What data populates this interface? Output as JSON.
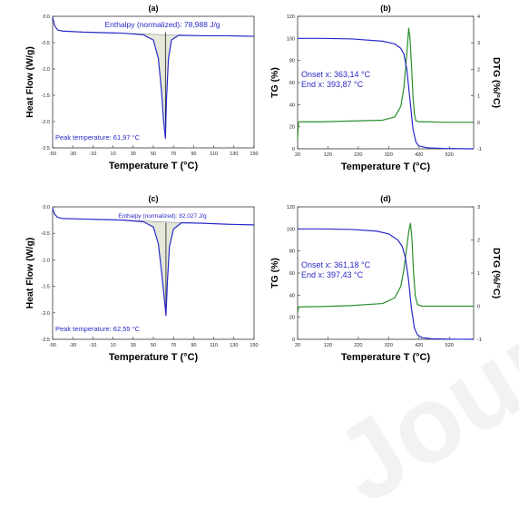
{
  "watermark": "Journal Pre-proofs",
  "colors": {
    "dsc": "#2929c8",
    "tg": "#2929c8",
    "dtg": "#2b8f2b",
    "peakTip": "#000000",
    "fill": "#e5e8d8"
  },
  "chart_data": [
    {
      "panel": "(a)",
      "type": "line",
      "kind": "dsc",
      "title": "(a)",
      "xlabel": "Temperature T (°C)",
      "ylabel": "Heat Flow (W/g)",
      "xlim": [
        -50,
        150
      ],
      "ylim": [
        -2.5,
        0.0
      ],
      "xticks": [
        -50,
        -30,
        -10,
        10,
        30,
        50,
        70,
        90,
        110,
        130,
        150
      ],
      "yticks": [
        -2.5,
        -2.0,
        -1.5,
        -1.0,
        -0.5,
        0.0
      ],
      "ytick_labels": [
        "-2.5",
        "-2.0",
        "-1.5",
        "-1.0",
        "-0.5",
        "0.0"
      ],
      "annotation_top": "Enthalpy (normalized): 78,988 J/g",
      "annotation_bottom": "Peak temperature: 61,97 °C",
      "series": [
        {
          "x": [
            -50,
            -48,
            -45,
            -40,
            -20,
            0,
            20,
            40,
            50,
            55,
            58,
            60,
            61.97,
            63,
            65,
            68,
            75,
            100,
            125,
            150
          ],
          "y": [
            -0.02,
            -0.18,
            -0.26,
            -0.28,
            -0.3,
            -0.31,
            -0.32,
            -0.35,
            -0.45,
            -0.8,
            -1.4,
            -1.95,
            -2.32,
            -1.6,
            -0.8,
            -0.45,
            -0.36,
            -0.37,
            -0.37,
            -0.38
          ]
        }
      ]
    },
    {
      "panel": "(b)",
      "type": "line",
      "kind": "tga",
      "title": "(b)",
      "xlabel": "Temperature T (°C)",
      "ylabel": "TG (%)",
      "y2label": "DTG (%/°C)",
      "xlim": [
        20,
        600
      ],
      "ylim": [
        0,
        120
      ],
      "y2lim": [
        -1,
        4
      ],
      "xticks": [
        20,
        120,
        220,
        320,
        420,
        520
      ],
      "yticks": [
        0,
        20,
        40,
        60,
        80,
        100,
        120
      ],
      "y2ticks": [
        -1,
        0,
        1,
        2,
        3,
        4
      ],
      "annotation": [
        "Onset x: 363,14 °C",
        "End x: 393,87 °C"
      ],
      "series": [
        {
          "name": "",
          "axis": "left",
          "x": [
            20,
            100,
            200,
            300,
            340,
            360,
            370,
            380,
            390,
            400,
            410,
            420,
            450,
            500,
            600
          ],
          "y": [
            100,
            100,
            99.5,
            97.5,
            95,
            91,
            86,
            72,
            45,
            18,
            6,
            2.5,
            0.8,
            0.3,
            0
          ]
        },
        {
          "name": "",
          "axis": "right",
          "x": [
            20,
            23,
            30,
            100,
            200,
            300,
            340,
            360,
            370,
            380,
            386,
            390,
            395,
            400,
            405,
            410,
            420,
            450,
            500,
            600
          ],
          "y": [
            -0.6,
            0.0,
            0.02,
            0.02,
            0.05,
            0.08,
            0.2,
            0.6,
            1.3,
            2.6,
            3.55,
            3.2,
            2.2,
            1.0,
            0.3,
            0.05,
            0.02,
            0.02,
            0.0,
            0.0
          ]
        }
      ]
    },
    {
      "panel": "(c)",
      "type": "line",
      "kind": "dsc",
      "title": "(c)",
      "xlabel": "Temperature T (°C)",
      "ylabel": "Heat Flow (W/g)",
      "xlim": [
        -50,
        150
      ],
      "ylim": [
        -2.5,
        0.0
      ],
      "xticks": [
        -50,
        -30,
        -10,
        10,
        30,
        50,
        70,
        90,
        110,
        130,
        150
      ],
      "yticks": [
        -2.5,
        -2.0,
        -1.5,
        -1.0,
        -0.5,
        0.0
      ],
      "ytick_labels": [
        "-2.5",
        "-2.0",
        "-1.5",
        "-1.0",
        "-0.5",
        "0.0"
      ],
      "annotation_top": "Enthalpy (normalized): 82,027 J/g",
      "annotation_bottom": "Peak temperature: 62,55 °C",
      "series": [
        {
          "x": [
            -50,
            -48,
            -45,
            -40,
            -20,
            0,
            20,
            40,
            50,
            55,
            58,
            61,
            62.55,
            64,
            66,
            70,
            78,
            100,
            125,
            150
          ],
          "y": [
            -0.03,
            -0.14,
            -0.2,
            -0.22,
            -0.23,
            -0.24,
            -0.25,
            -0.28,
            -0.38,
            -0.7,
            -1.2,
            -1.75,
            -2.05,
            -1.4,
            -0.75,
            -0.42,
            -0.3,
            -0.31,
            -0.33,
            -0.34
          ]
        }
      ]
    },
    {
      "panel": "(d)",
      "type": "line",
      "kind": "tga",
      "title": "(d)",
      "xlabel": "Temperature T (°C)",
      "ylabel": "TG (%)",
      "y2label": "DTG (%/°C)",
      "xlim": [
        20,
        600
      ],
      "ylim": [
        0,
        120
      ],
      "y2lim": [
        -1,
        3
      ],
      "xticks": [
        20,
        120,
        220,
        320,
        420,
        520
      ],
      "yticks": [
        0,
        20,
        40,
        60,
        80,
        100,
        120
      ],
      "y2ticks": [
        -1,
        0,
        1,
        2,
        3
      ],
      "annotation": [
        "Onset x: 361,18 °C",
        "End x: 397,43 °C"
      ],
      "series": [
        {
          "name": "",
          "axis": "left",
          "x": [
            20,
            100,
            200,
            280,
            320,
            350,
            365,
            375,
            385,
            395,
            405,
            415,
            430,
            460,
            520,
            600
          ],
          "y": [
            100,
            100,
            99.5,
            98,
            95.5,
            90,
            84,
            74,
            55,
            28,
            10,
            4,
            1.5,
            0.5,
            0.1,
            0
          ]
        },
        {
          "name": "",
          "axis": "right",
          "x": [
            20,
            23,
            30,
            100,
            200,
            300,
            340,
            360,
            370,
            380,
            387,
            392,
            397,
            402,
            408,
            415,
            430,
            460,
            520,
            600
          ],
          "y": [
            -0.2,
            -0.03,
            -0.02,
            -0.01,
            0.02,
            0.08,
            0.25,
            0.6,
            1.1,
            1.8,
            2.3,
            2.5,
            2.0,
            1.0,
            0.3,
            0.05,
            0.0,
            0.0,
            0.0,
            0.0
          ]
        }
      ]
    }
  ]
}
